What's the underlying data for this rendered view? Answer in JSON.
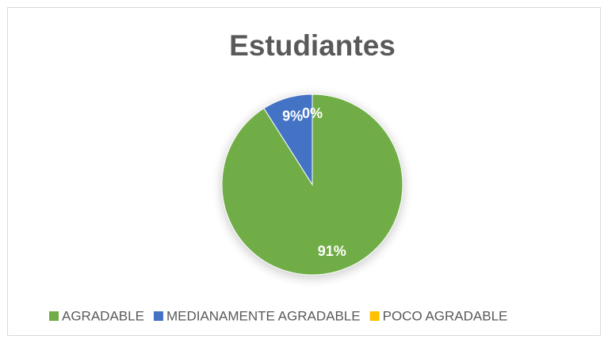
{
  "chart_data": {
    "type": "pie",
    "title": "Estudiantes",
    "categories": [
      "AGRADABLE",
      "MEDIANAMENTE AGRADABLE",
      "POCO AGRADABLE"
    ],
    "values": [
      91,
      9,
      0
    ],
    "value_labels": [
      "91%",
      "9%",
      "0%"
    ],
    "colors": [
      "#70ad47",
      "#4472c4",
      "#ffc000"
    ],
    "legend": "bottom"
  }
}
